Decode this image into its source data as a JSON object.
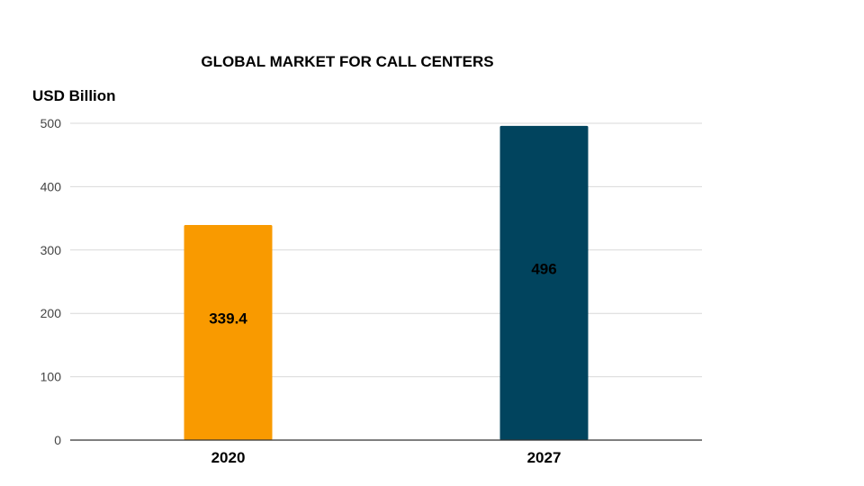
{
  "chart_data": {
    "type": "bar",
    "title": "GLOBAL MARKET FOR CALL CENTERS",
    "ylabel": "USD Billion",
    "xlabel": "",
    "categories": [
      "2020",
      "2027"
    ],
    "values": [
      339.4,
      496
    ],
    "data_labels": [
      "339.4",
      "496"
    ],
    "colors": [
      "#F99A00",
      "#01445E"
    ],
    "ylim": [
      0,
      500
    ],
    "yticks": [
      0,
      100,
      200,
      300,
      400,
      500
    ],
    "grid": true,
    "legend": "none"
  }
}
